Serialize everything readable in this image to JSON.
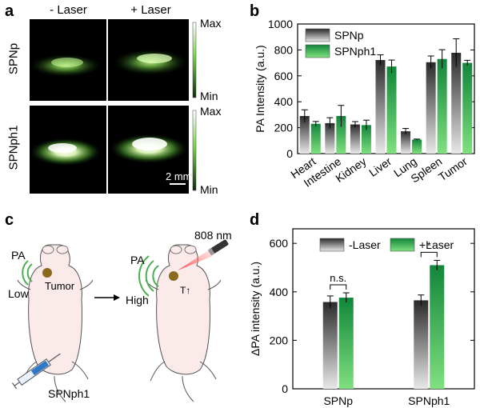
{
  "panels": {
    "a": {
      "label": "a",
      "col_headers": [
        "- Laser",
        "+ Laser"
      ],
      "row_headers": [
        "SPNp",
        "SPNph1"
      ],
      "colorbar_max": "Max",
      "colorbar_min": "Min",
      "scale_bar": "2 mm"
    },
    "b": {
      "label": "b"
    },
    "c": {
      "label": "c",
      "left_pa": "PA",
      "left_level": "Low",
      "tumor": "Tumor",
      "right_pa": "PA",
      "right_level": "High",
      "temp_label": "T↑",
      "laser": "808 nm",
      "injection": "SPNph1"
    },
    "d": {
      "label": "d"
    }
  },
  "colors": {
    "gray_dark": "#2a2a2a",
    "gray_light": "#e8e8e8",
    "green_dark": "#11863a",
    "green_light": "#7fe07f",
    "pa_image_bg": "#000000",
    "pa_signal": "#c8ff9a",
    "mouse_body": "#fbeaea",
    "tumor": "#8a6a1e"
  },
  "chart_data": [
    {
      "type": "bar",
      "panel": "b",
      "categories": [
        "Heart",
        "Intestine",
        "Kidney",
        "Liver",
        "Lung",
        "Spleen",
        "Tumor"
      ],
      "series": [
        {
          "name": "SPNp",
          "values": [
            290,
            235,
            225,
            722,
            172,
            705,
            778
          ],
          "errors": [
            48,
            42,
            22,
            40,
            22,
            48,
            108
          ]
        },
        {
          "name": "SPNph1",
          "values": [
            230,
            290,
            220,
            672,
            108,
            730,
            700
          ],
          "errors": [
            18,
            82,
            38,
            50,
            4,
            72,
            20
          ]
        }
      ],
      "ylabel": "PA Intensity (a.u.)",
      "ylim": [
        0,
        1000
      ],
      "yticks": [
        0,
        200,
        400,
        600,
        800,
        1000
      ],
      "legend_position": "top-left"
    },
    {
      "type": "bar",
      "panel": "d",
      "categories": [
        "SPNp",
        "SPNph1"
      ],
      "series": [
        {
          "name": "-Laser",
          "values": [
            358,
            365
          ],
          "errors": [
            25,
            22
          ]
        },
        {
          "name": "+Laser",
          "values": [
            376,
            510
          ],
          "errors": [
            20,
            20
          ]
        }
      ],
      "ylabel": "ΔPA intensity (a.u.)",
      "ylim": [
        0,
        660
      ],
      "yticks": [
        0,
        200,
        400,
        600
      ],
      "significance": [
        "n.s.",
        "*"
      ],
      "legend_position": "top"
    }
  ]
}
